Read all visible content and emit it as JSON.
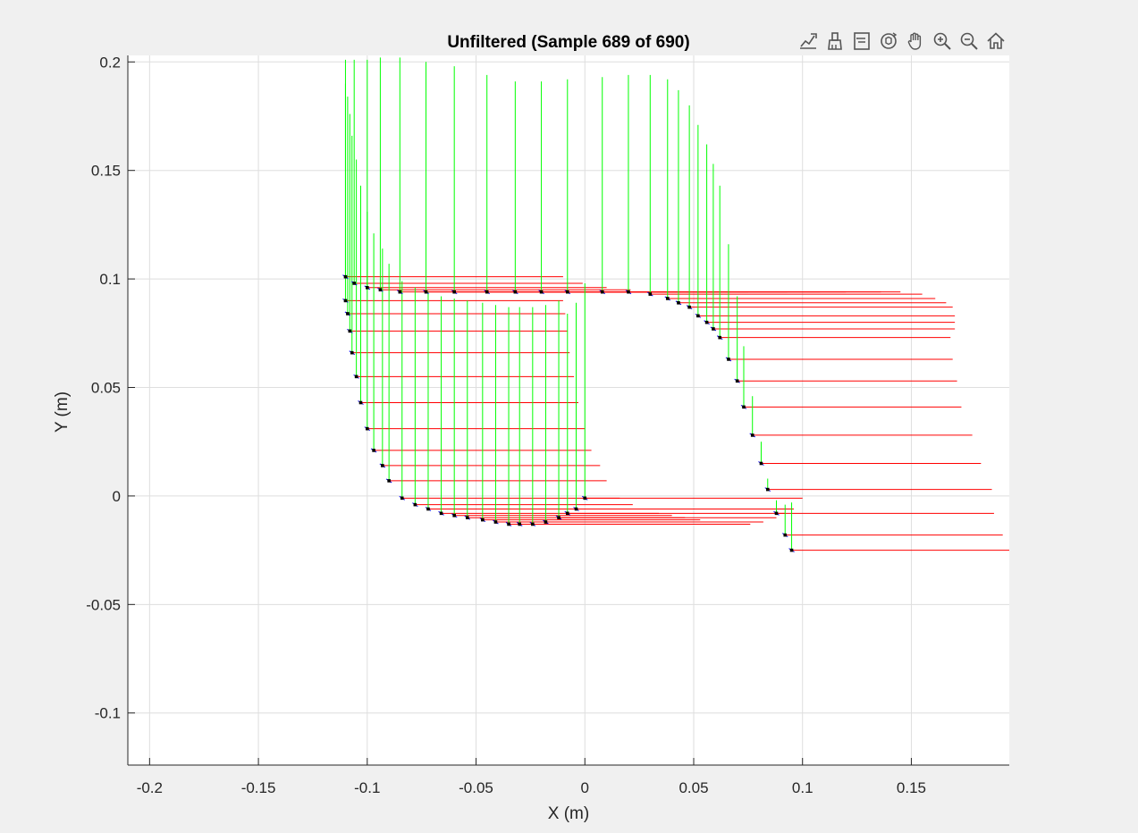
{
  "toolbar": {
    "items": [
      {
        "name": "data-tips-icon",
        "label": "Data Tips"
      },
      {
        "name": "brush-icon",
        "label": "Brush"
      },
      {
        "name": "legend-icon",
        "label": "Insert Legend"
      },
      {
        "name": "rotate-3d-icon",
        "label": "Rotate 3D"
      },
      {
        "name": "pan-icon",
        "label": "Pan"
      },
      {
        "name": "zoom-in-icon",
        "label": "Zoom In"
      },
      {
        "name": "zoom-out-icon",
        "label": "Zoom Out"
      },
      {
        "name": "home-icon",
        "label": "Restore View"
      }
    ]
  },
  "chart_data": {
    "type": "line",
    "title": "Unfiltered (Sample 689 of 690)",
    "xlabel": "X (m)",
    "ylabel": "Y (m)",
    "xlim": [
      -0.21,
      0.195
    ],
    "ylim": [
      -0.124,
      0.203
    ],
    "xticks": [
      -0.2,
      -0.15,
      -0.1,
      -0.05,
      0,
      0.05,
      0.1,
      0.15
    ],
    "xtick_labels": [
      "-0.2",
      "-0.15",
      "-0.1",
      "-0.05",
      "0",
      "0.05",
      "0.1",
      "0.15"
    ],
    "yticks": [
      -0.1,
      -0.05,
      0,
      0.05,
      0.1,
      0.15,
      0.2
    ],
    "ytick_labels": [
      "-0.1",
      "-0.05",
      "0",
      "0.05",
      "0.1",
      "0.15",
      "0.2"
    ],
    "grid": true,
    "axis_colors": {
      "x_axis": "#ff0000",
      "y_axis": "#00ff00",
      "marker": "#000000",
      "heading": "#0000ff",
      "grid": "#dedede"
    },
    "series": [
      {
        "type": "pose-frames",
        "points": [
          {
            "x": -0.11,
            "y": 0.101,
            "xlen": 0.1,
            "ylen": 0.1
          },
          {
            "x": -0.106,
            "y": 0.098,
            "xlen": 0.105,
            "ylen": 0.103
          },
          {
            "x": -0.1,
            "y": 0.096,
            "xlen": 0.11,
            "ylen": 0.105
          },
          {
            "x": -0.094,
            "y": 0.095,
            "xlen": 0.115,
            "ylen": 0.107
          },
          {
            "x": -0.085,
            "y": 0.094,
            "xlen": 0.115,
            "ylen": 0.108
          },
          {
            "x": -0.073,
            "y": 0.094,
            "xlen": 0.115,
            "ylen": 0.106
          },
          {
            "x": -0.06,
            "y": 0.094,
            "xlen": 0.12,
            "ylen": 0.104
          },
          {
            "x": -0.045,
            "y": 0.094,
            "xlen": 0.12,
            "ylen": 0.1
          },
          {
            "x": -0.032,
            "y": 0.094,
            "xlen": 0.125,
            "ylen": 0.097
          },
          {
            "x": -0.02,
            "y": 0.094,
            "xlen": 0.128,
            "ylen": 0.097
          },
          {
            "x": -0.008,
            "y": 0.094,
            "xlen": 0.128,
            "ylen": 0.098
          },
          {
            "x": 0.008,
            "y": 0.094,
            "xlen": 0.128,
            "ylen": 0.099
          },
          {
            "x": 0.02,
            "y": 0.094,
            "xlen": 0.125,
            "ylen": 0.1
          },
          {
            "x": 0.03,
            "y": 0.093,
            "xlen": 0.125,
            "ylen": 0.101
          },
          {
            "x": 0.038,
            "y": 0.091,
            "xlen": 0.123,
            "ylen": 0.101
          },
          {
            "x": 0.043,
            "y": 0.089,
            "xlen": 0.123,
            "ylen": 0.098
          },
          {
            "x": 0.048,
            "y": 0.087,
            "xlen": 0.121,
            "ylen": 0.093
          },
          {
            "x": 0.052,
            "y": 0.083,
            "xlen": 0.118,
            "ylen": 0.088
          },
          {
            "x": 0.056,
            "y": 0.08,
            "xlen": 0.114,
            "ylen": 0.082
          },
          {
            "x": 0.059,
            "y": 0.077,
            "xlen": 0.111,
            "ylen": 0.076
          },
          {
            "x": 0.062,
            "y": 0.073,
            "xlen": 0.106,
            "ylen": 0.07
          },
          {
            "x": 0.066,
            "y": 0.063,
            "xlen": 0.103,
            "ylen": 0.053
          },
          {
            "x": 0.07,
            "y": 0.053,
            "xlen": 0.101,
            "ylen": 0.039
          },
          {
            "x": 0.073,
            "y": 0.041,
            "xlen": 0.1,
            "ylen": 0.028
          },
          {
            "x": 0.077,
            "y": 0.028,
            "xlen": 0.101,
            "ylen": 0.018
          },
          {
            "x": 0.081,
            "y": 0.015,
            "xlen": 0.101,
            "ylen": 0.01
          },
          {
            "x": 0.084,
            "y": 0.003,
            "xlen": 0.103,
            "ylen": 0.005
          },
          {
            "x": 0.088,
            "y": -0.008,
            "xlen": 0.1,
            "ylen": 0.006
          },
          {
            "x": 0.092,
            "y": -0.018,
            "xlen": 0.1,
            "ylen": 0.014
          },
          {
            "x": 0.095,
            "y": -0.025,
            "xlen": 0.1,
            "ylen": 0.022
          },
          {
            "x": 0.0,
            "y": -0.001,
            "xlen": 0.1,
            "ylen": 0.099
          },
          {
            "x": -0.004,
            "y": -0.006,
            "xlen": 0.1,
            "ylen": 0.095
          },
          {
            "x": -0.008,
            "y": -0.008,
            "xlen": 0.1,
            "ylen": 0.092
          },
          {
            "x": -0.012,
            "y": -0.01,
            "xlen": 0.1,
            "ylen": 0.1
          },
          {
            "x": -0.018,
            "y": -0.012,
            "xlen": 0.1,
            "ylen": 0.1
          },
          {
            "x": -0.024,
            "y": -0.013,
            "xlen": 0.1,
            "ylen": 0.1
          },
          {
            "x": -0.03,
            "y": -0.013,
            "xlen": 0.1,
            "ylen": 0.1
          },
          {
            "x": -0.035,
            "y": -0.013,
            "xlen": 0.1,
            "ylen": 0.1
          },
          {
            "x": -0.041,
            "y": -0.012,
            "xlen": 0.1,
            "ylen": 0.1
          },
          {
            "x": -0.047,
            "y": -0.011,
            "xlen": 0.1,
            "ylen": 0.1
          },
          {
            "x": -0.054,
            "y": -0.01,
            "xlen": 0.1,
            "ylen": 0.1
          },
          {
            "x": -0.06,
            "y": -0.009,
            "xlen": 0.1,
            "ylen": 0.1
          },
          {
            "x": -0.066,
            "y": -0.008,
            "xlen": 0.1,
            "ylen": 0.1
          },
          {
            "x": -0.072,
            "y": -0.006,
            "xlen": 0.1,
            "ylen": 0.1
          },
          {
            "x": -0.078,
            "y": -0.004,
            "xlen": 0.1,
            "ylen": 0.1
          },
          {
            "x": -0.084,
            "y": -0.001,
            "xlen": 0.1,
            "ylen": 0.1
          },
          {
            "x": -0.09,
            "y": 0.007,
            "xlen": 0.1,
            "ylen": 0.1
          },
          {
            "x": -0.093,
            "y": 0.014,
            "xlen": 0.1,
            "ylen": 0.1
          },
          {
            "x": -0.097,
            "y": 0.021,
            "xlen": 0.1,
            "ylen": 0.1
          },
          {
            "x": -0.1,
            "y": 0.031,
            "xlen": 0.1,
            "ylen": 0.1
          },
          {
            "x": -0.103,
            "y": 0.043,
            "xlen": 0.1,
            "ylen": 0.1
          },
          {
            "x": -0.105,
            "y": 0.055,
            "xlen": 0.1,
            "ylen": 0.1
          },
          {
            "x": -0.107,
            "y": 0.066,
            "xlen": 0.1,
            "ylen": 0.1
          },
          {
            "x": -0.108,
            "y": 0.076,
            "xlen": 0.1,
            "ylen": 0.1
          },
          {
            "x": -0.109,
            "y": 0.084,
            "xlen": 0.1,
            "ylen": 0.1
          },
          {
            "x": -0.11,
            "y": 0.09,
            "xlen": 0.1,
            "ylen": 0.1
          }
        ]
      }
    ]
  }
}
